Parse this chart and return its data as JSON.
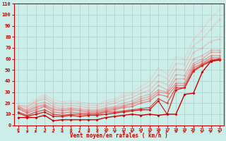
{
  "xlabel": "Vent moyen/en rafales ( km/h )",
  "background_color": "#cceee8",
  "grid_color": "#aacccc",
  "xlim": [
    -0.5,
    23.5
  ],
  "ylim": [
    0,
    110
  ],
  "yticks": [
    0,
    10,
    20,
    30,
    40,
    50,
    60,
    70,
    80,
    90,
    100,
    110
  ],
  "xticks": [
    0,
    1,
    2,
    3,
    4,
    5,
    6,
    7,
    8,
    9,
    10,
    11,
    12,
    13,
    14,
    15,
    16,
    17,
    18,
    19,
    20,
    21,
    22,
    23
  ],
  "series": [
    {
      "x": [
        0,
        1,
        2,
        3,
        4,
        5,
        6,
        7,
        8,
        9,
        10,
        11,
        12,
        13,
        14,
        15,
        16,
        17,
        18,
        19,
        20,
        21,
        22,
        23
      ],
      "y": [
        7,
        7,
        7,
        9,
        4,
        5,
        5,
        5,
        5,
        5,
        7,
        8,
        9,
        10,
        9,
        10,
        9,
        10,
        10,
        28,
        29,
        48,
        58,
        59
      ],
      "color": "#cc0000",
      "marker": "D",
      "markersize": 2.0,
      "linewidth": 1.0,
      "alpha": 1.0
    },
    {
      "x": [
        0,
        1,
        2,
        3,
        4,
        5,
        6,
        7,
        8,
        9,
        10,
        11,
        12,
        13,
        14,
        15,
        16,
        17,
        18,
        19,
        20,
        21,
        22,
        23
      ],
      "y": [
        11,
        8,
        10,
        12,
        8,
        8,
        9,
        8,
        9,
        9,
        10,
        11,
        12,
        13,
        14,
        14,
        22,
        10,
        32,
        34,
        49,
        54,
        58,
        60
      ],
      "color": "#cc0000",
      "marker": "D",
      "markersize": 2.0,
      "linewidth": 1.0,
      "alpha": 0.8
    },
    {
      "x": [
        0,
        1,
        2,
        3,
        4,
        5,
        6,
        7,
        8,
        9,
        10,
        11,
        12,
        13,
        14,
        15,
        16,
        17,
        18,
        19,
        20,
        21,
        22,
        23
      ],
      "y": [
        12,
        9,
        12,
        14,
        10,
        9,
        10,
        10,
        10,
        10,
        12,
        12,
        13,
        14,
        15,
        16,
        24,
        20,
        34,
        34,
        50,
        55,
        59,
        60
      ],
      "color": "#dd2222",
      "marker": "D",
      "markersize": 2.0,
      "linewidth": 1.0,
      "alpha": 0.7
    },
    {
      "x": [
        0,
        1,
        2,
        3,
        4,
        5,
        6,
        7,
        8,
        9,
        10,
        11,
        12,
        13,
        14,
        15,
        16,
        17,
        18,
        19,
        20,
        21,
        22,
        23
      ],
      "y": [
        15,
        11,
        14,
        17,
        12,
        11,
        12,
        11,
        11,
        11,
        13,
        14,
        16,
        17,
        20,
        22,
        28,
        26,
        36,
        36,
        52,
        56,
        61,
        61
      ],
      "color": "#ee5555",
      "marker": "D",
      "markersize": 2.0,
      "linewidth": 1.0,
      "alpha": 0.65
    },
    {
      "x": [
        0,
        1,
        2,
        3,
        4,
        5,
        6,
        7,
        8,
        9,
        10,
        11,
        12,
        13,
        14,
        15,
        16,
        17,
        18,
        19,
        20,
        21,
        22,
        23
      ],
      "y": [
        16,
        12,
        16,
        18,
        14,
        13,
        14,
        13,
        12,
        12,
        14,
        15,
        17,
        19,
        22,
        24,
        30,
        29,
        38,
        38,
        54,
        58,
        63,
        63
      ],
      "color": "#ee6666",
      "marker": "D",
      "markersize": 2.0,
      "linewidth": 1.0,
      "alpha": 0.58
    },
    {
      "x": [
        0,
        1,
        2,
        3,
        4,
        5,
        6,
        7,
        8,
        9,
        10,
        11,
        12,
        13,
        14,
        15,
        16,
        17,
        18,
        19,
        20,
        21,
        22,
        23
      ],
      "y": [
        17,
        13,
        17,
        19,
        15,
        14,
        15,
        14,
        13,
        13,
        15,
        16,
        18,
        20,
        24,
        26,
        32,
        30,
        42,
        42,
        56,
        60,
        66,
        66
      ],
      "color": "#ee7777",
      "marker": "D",
      "markersize": 2.0,
      "linewidth": 1.0,
      "alpha": 0.52
    },
    {
      "x": [
        0,
        1,
        2,
        3,
        4,
        5,
        6,
        7,
        8,
        9,
        10,
        11,
        12,
        13,
        14,
        15,
        16,
        17,
        18,
        19,
        20,
        21,
        22,
        23
      ],
      "y": [
        17,
        14,
        19,
        21,
        17,
        15,
        16,
        15,
        14,
        14,
        16,
        17,
        20,
        22,
        26,
        28,
        36,
        32,
        46,
        45,
        60,
        63,
        68,
        68
      ],
      "color": "#f08080",
      "marker": "D",
      "markersize": 2.0,
      "linewidth": 1.0,
      "alpha": 0.46
    },
    {
      "x": [
        0,
        1,
        2,
        3,
        4,
        5,
        6,
        7,
        8,
        9,
        10,
        11,
        12,
        13,
        14,
        15,
        16,
        17,
        18,
        19,
        20,
        21,
        22,
        23
      ],
      "y": [
        18,
        16,
        21,
        24,
        19,
        17,
        18,
        17,
        16,
        16,
        18,
        20,
        23,
        25,
        29,
        32,
        40,
        37,
        51,
        50,
        66,
        70,
        76,
        78
      ],
      "color": "#f09090",
      "marker": "^",
      "markersize": 2.5,
      "linewidth": 1.0,
      "alpha": 0.42
    },
    {
      "x": [
        0,
        1,
        2,
        3,
        4,
        5,
        6,
        7,
        8,
        9,
        10,
        11,
        12,
        13,
        14,
        15,
        16,
        17,
        18,
        19,
        20,
        21,
        22,
        23
      ],
      "y": [
        18,
        17,
        22,
        26,
        21,
        19,
        20,
        19,
        18,
        18,
        20,
        22,
        26,
        28,
        32,
        36,
        46,
        42,
        56,
        55,
        72,
        78,
        87,
        96
      ],
      "color": "#f0a0a0",
      "marker": "^",
      "markersize": 2.5,
      "linewidth": 1.0,
      "alpha": 0.38
    },
    {
      "x": [
        0,
        1,
        2,
        3,
        4,
        5,
        6,
        7,
        8,
        9,
        10,
        11,
        12,
        13,
        14,
        15,
        16,
        17,
        18,
        19,
        20,
        21,
        22,
        23
      ],
      "y": [
        18,
        18,
        24,
        28,
        23,
        21,
        22,
        21,
        20,
        19,
        22,
        24,
        28,
        30,
        35,
        40,
        52,
        46,
        62,
        60,
        78,
        86,
        97,
        105
      ],
      "color": "#f0b0b0",
      "marker": "^",
      "markersize": 2.5,
      "linewidth": 1.0,
      "alpha": 0.34
    }
  ],
  "arrow_directions": [
    0,
    0,
    1,
    3,
    2,
    3,
    0,
    2,
    0,
    2,
    0,
    0,
    0,
    1,
    0,
    2,
    0,
    1,
    0,
    1,
    1,
    1,
    1,
    1
  ],
  "tick_color": "#cc0000",
  "label_color": "#cc0000",
  "spine_color": "#cc0000"
}
